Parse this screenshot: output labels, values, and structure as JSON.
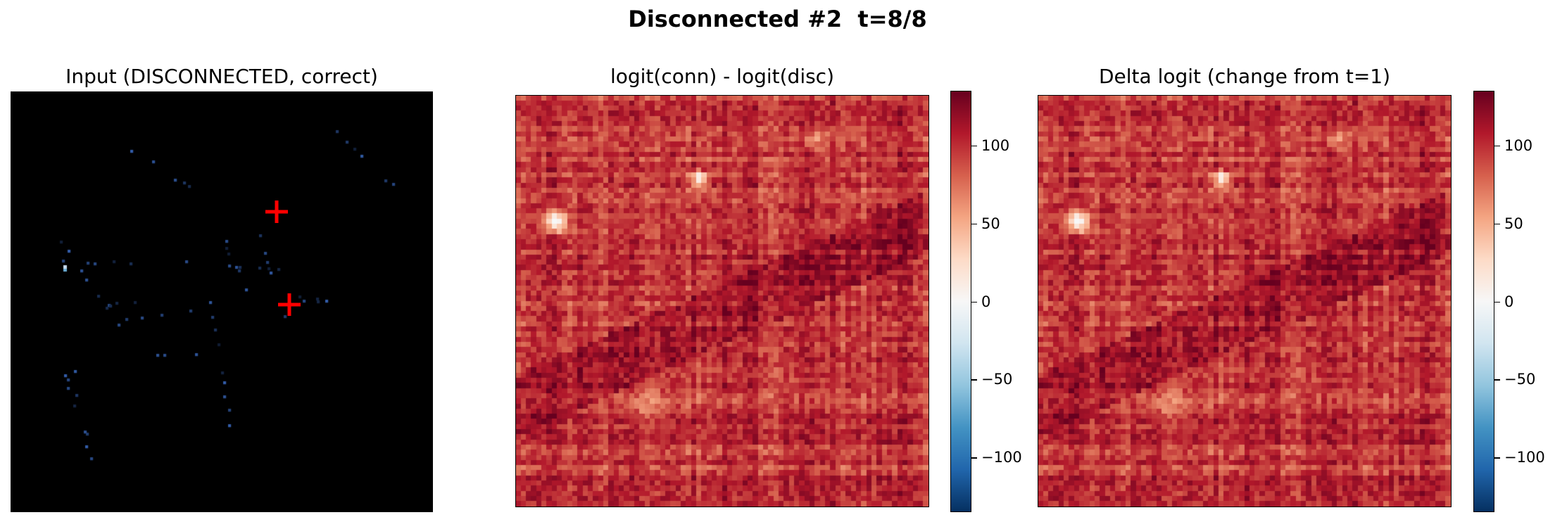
{
  "figure": {
    "suptitle": "Disconnected #2  t=8/8"
  },
  "chart_data": [
    {
      "type": "heatmap",
      "title": "Input (DISCONNECTED, correct)",
      "grid_on": false,
      "axes_visible": false,
      "colormap": "Blues_r",
      "background_color": "#000000",
      "annotations": [
        {
          "marker": "+",
          "color": "#ff0000"
        },
        {
          "marker": "+",
          "color": "#ff0000"
        }
      ]
    },
    {
      "type": "heatmap",
      "title": "logit(conn) - logit(disc)",
      "grid_on": false,
      "axes_visible": false,
      "colormap": "RdBu_r",
      "colorbar": {
        "range": [
          -135,
          135
        ],
        "ticks": [
          100,
          50,
          0,
          -50,
          -100
        ],
        "tick_labels": [
          "100",
          "50",
          "0",
          "−50",
          "−100"
        ]
      }
    },
    {
      "type": "heatmap",
      "title": "Delta logit (change from t=1)",
      "grid_on": false,
      "axes_visible": false,
      "colormap": "RdBu_r",
      "colorbar": {
        "range": [
          -135,
          135
        ],
        "ticks": [
          100,
          50,
          0,
          -50,
          -100
        ],
        "tick_labels": [
          "100",
          "50",
          "0",
          "−50",
          "−100"
        ]
      }
    }
  ]
}
